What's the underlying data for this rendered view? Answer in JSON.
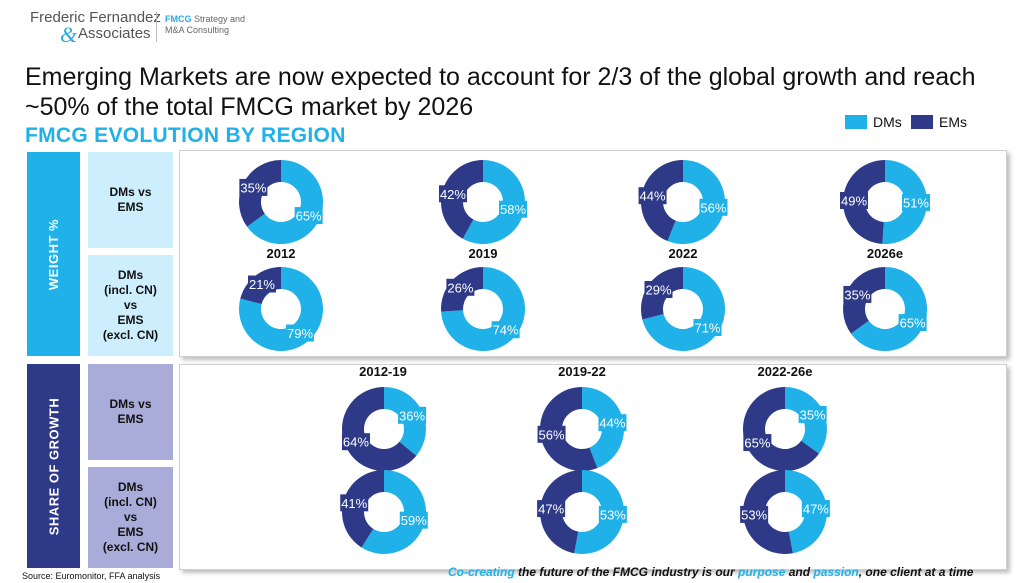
{
  "header": {
    "company_line1": "Frederic Fernandez",
    "company_amp": "&",
    "company_line2": "Associates",
    "tag_brand": "FMCG",
    "tag_line1_rest": "Strategy and",
    "tag_line2": "M&A Consulting"
  },
  "headline": "Emerging Markets are now expected to account for 2/3 of the global growth and reach ~50% of the total FMCG market by 2026",
  "subhead": "FMCG EVOLUTION BY REGION",
  "legend": {
    "dms": "DMs",
    "ems": "EMs"
  },
  "colors": {
    "dms": "#1fb1e8",
    "ems": "#2e3a87",
    "weight_band": "#1fb1e8",
    "weight_label_bg": "#cdeefc",
    "growth_band": "#2e3a87",
    "growth_label_bg": "#a9acd8"
  },
  "side_labels": {
    "weight": "WEIGHT %",
    "growth": "SHARE OF GROWTH"
  },
  "row_labels": {
    "weight_row1": "DMs vs\nEMS",
    "weight_row2": "DMs\n(incl. CN)\nvs\nEMS\n(excl. CN)",
    "growth_row1": "DMs vs\nEMS",
    "growth_row2": "DMs\n(incl. CN)\nvs\nEMS\n(excl. CN)"
  },
  "chart_data": [
    {
      "type": "pie",
      "title": "WEIGHT % — DMs vs EMS",
      "categories": [
        "2012",
        "2019",
        "2022",
        "2026e"
      ],
      "series": [
        {
          "name": "DMs",
          "values": [
            65,
            58,
            56,
            51
          ]
        },
        {
          "name": "EMs",
          "values": [
            35,
            42,
            44,
            49
          ]
        }
      ]
    },
    {
      "type": "pie",
      "title": "WEIGHT % — DMs (incl. CN) vs EMS (excl. CN)",
      "categories": [
        "2012",
        "2019",
        "2022",
        "2026e"
      ],
      "series": [
        {
          "name": "DMs",
          "values": [
            79,
            74,
            71,
            65
          ]
        },
        {
          "name": "EMs",
          "values": [
            21,
            26,
            29,
            35
          ]
        }
      ]
    },
    {
      "type": "pie",
      "title": "SHARE OF GROWTH — DMs vs EMS",
      "categories": [
        "2012-19",
        "2019-22",
        "2022-26e"
      ],
      "series": [
        {
          "name": "DMs",
          "values": [
            36,
            44,
            35
          ]
        },
        {
          "name": "EMs",
          "values": [
            64,
            56,
            65
          ]
        }
      ]
    },
    {
      "type": "pie",
      "title": "SHARE OF GROWTH — DMs (incl. CN) vs EMS (excl. CN)",
      "categories": [
        "2012-19",
        "2019-22",
        "2022-26e"
      ],
      "series": [
        {
          "name": "DMs",
          "values": [
            59,
            53,
            47
          ]
        },
        {
          "name": "EMs",
          "values": [
            41,
            47,
            53
          ]
        }
      ]
    }
  ],
  "footer": {
    "source": "Source: Euromonitor, FFA analysis",
    "tag_a": "Co-creating",
    "tag_b": " the future of the FMCG industry is our ",
    "tag_c": "purpose",
    "tag_d": " and ",
    "tag_e": "passion",
    "tag_f": ", one client at a time"
  }
}
